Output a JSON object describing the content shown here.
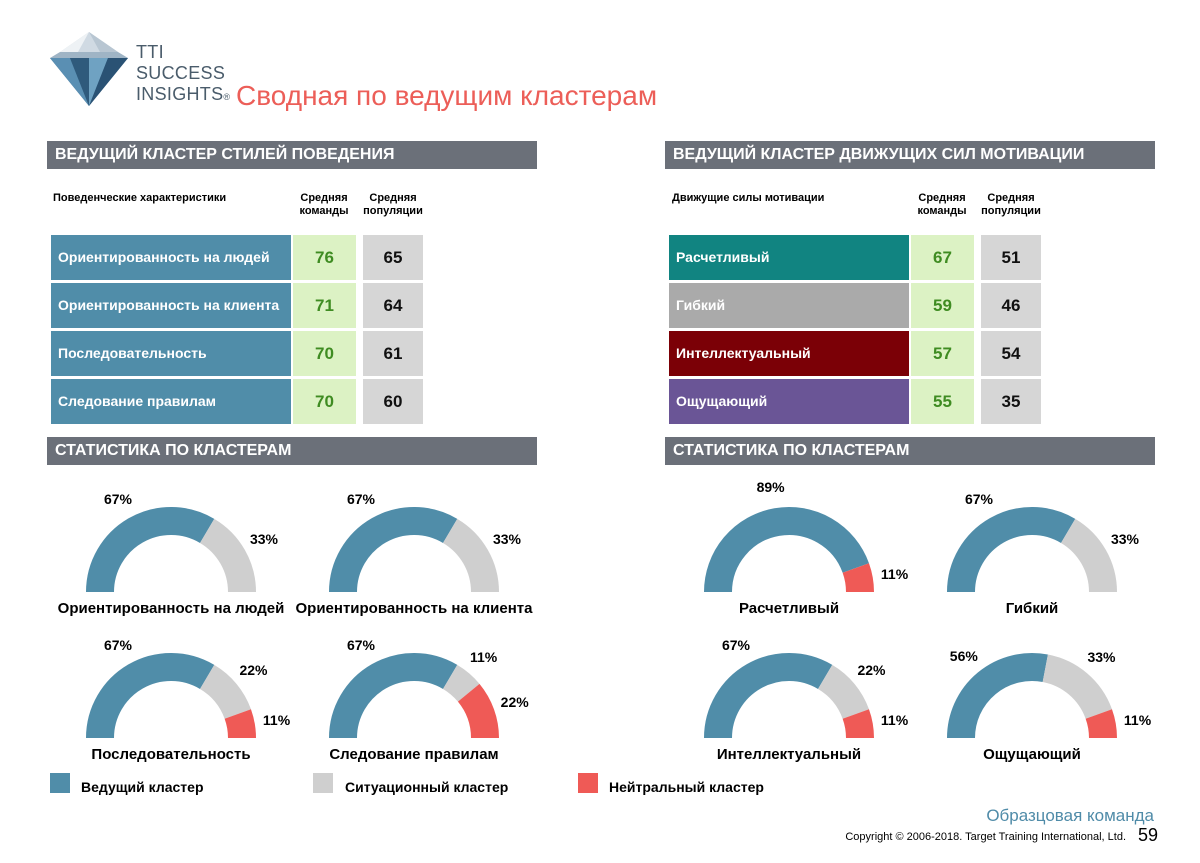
{
  "brand": {
    "logo_lines": [
      "TTI",
      "SUCCESS",
      "INSIGHTS"
    ],
    "registered_mark": "®"
  },
  "page_title": "Сводная по ведущим кластерам",
  "colors": {
    "leading": "#508da9",
    "situational": "#cfcfcf",
    "neutral": "#ef5a56",
    "header_bar": "#6b7079",
    "team_cell_bg": "#dcf2c4",
    "team_cell_text": "#3f8c22",
    "pop_cell_bg": "#d6d6d6",
    "title": "#ec5e58"
  },
  "behavior_table": {
    "header": "ВЕДУЩИЙ КЛАСТЕР СТИЛЕЙ ПОВЕДЕНИЯ",
    "col_name": "Поведенческие характеристики",
    "col_team": "Средняя команды",
    "col_pop": "Средняя популяции",
    "rows": [
      {
        "label": "Ориентированность на людей",
        "team": "76",
        "pop": "65",
        "color": "#508da9"
      },
      {
        "label": "Ориентированность на клиента",
        "team": "71",
        "pop": "64",
        "color": "#508da9"
      },
      {
        "label": "Последовательность",
        "team": "70",
        "pop": "61",
        "color": "#508da9"
      },
      {
        "label": "Следование правилам",
        "team": "70",
        "pop": "60",
        "color": "#508da9"
      }
    ]
  },
  "motivation_table": {
    "header": "ВЕДУЩИЙ КЛАСТЕР ДВИЖУЩИХ СИЛ МОТИВАЦИИ",
    "col_name": "Движущие силы мотивации",
    "col_team": "Средняя команды",
    "col_pop": "Средняя популяции",
    "rows": [
      {
        "label": "Расчетливый",
        "team": "67",
        "pop": "51",
        "color": "#118481"
      },
      {
        "label": "Гибкий",
        "team": "59",
        "pop": "46",
        "color": "#aaaaaa"
      },
      {
        "label": "Интеллектуальный",
        "team": "57",
        "pop": "54",
        "color": "#7b0006"
      },
      {
        "label": "Ощущающий",
        "team": "55",
        "pop": "35",
        "color": "#6a5596"
      }
    ]
  },
  "stats_header_left": "СТАТИСТИКА ПО КЛАСТЕРАМ",
  "stats_header_right": "СТАТИСТИКА ПО КЛАСТЕРАМ",
  "gauges": [
    {
      "label": "Ориентированность на людей",
      "leading": 67,
      "situational": 33,
      "neutral": 0,
      "labels": {
        "leading": "67%",
        "situational": "33%",
        "neutral": ""
      }
    },
    {
      "label": "Ориентированность на клиента",
      "leading": 67,
      "situational": 33,
      "neutral": 0,
      "labels": {
        "leading": "67%",
        "situational": "33%",
        "neutral": ""
      }
    },
    {
      "label": "Расчетливый",
      "leading": 89,
      "situational": 0,
      "neutral": 11,
      "labels": {
        "leading": "89%",
        "situational": "",
        "neutral": "11%"
      }
    },
    {
      "label": "Гибкий",
      "leading": 67,
      "situational": 33,
      "neutral": 0,
      "labels": {
        "leading": "67%",
        "situational": "33%",
        "neutral": ""
      }
    },
    {
      "label": "Последовательность",
      "leading": 67,
      "situational": 22,
      "neutral": 11,
      "labels": {
        "leading": "67%",
        "situational": "22%",
        "neutral": "11%"
      }
    },
    {
      "label": "Следование правилам",
      "leading": 67,
      "situational": 11,
      "neutral": 22,
      "labels": {
        "leading": "67%",
        "situational": "11%",
        "neutral": "22%"
      }
    },
    {
      "label": "Интеллектуальный",
      "leading": 67,
      "situational": 22,
      "neutral": 11,
      "labels": {
        "leading": "67%",
        "situational": "22%",
        "neutral": "11%"
      }
    },
    {
      "label": "Ощущающий",
      "leading": 56,
      "situational": 33,
      "neutral": 11,
      "labels": {
        "leading": "56%",
        "situational": "33%",
        "neutral": "11%"
      }
    }
  ],
  "legend": [
    {
      "label": "Ведущий кластер",
      "color": "#508da9"
    },
    {
      "label": "Ситуационный кластер",
      "color": "#cfcfcf"
    },
    {
      "label": "Нейтральный кластер",
      "color": "#ef5a56"
    }
  ],
  "footer": {
    "team_name": "Образцовая команда",
    "copyright": "Copyright © 2006-2018. Target Training International, Ltd.",
    "page_number": "59"
  }
}
